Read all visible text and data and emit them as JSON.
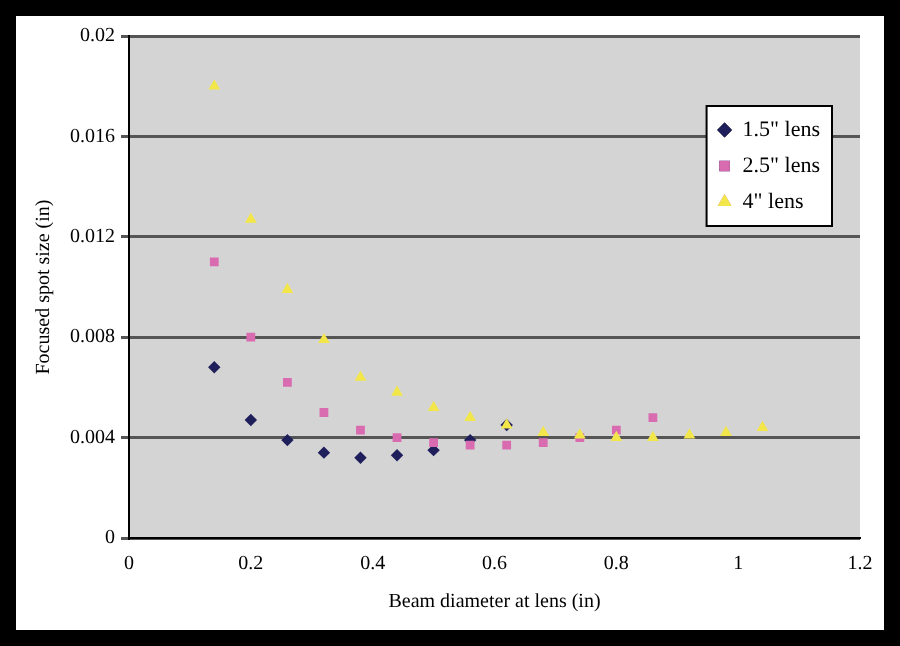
{
  "chart_data": {
    "type": "scatter",
    "xlabel": "Beam diameter at lens (in)",
    "ylabel": "Focused spot size (in)",
    "xlim": [
      0,
      1.2
    ],
    "xticks": [
      0,
      0.2,
      0.4,
      0.6,
      0.8,
      1,
      1.2
    ],
    "ylim": [
      0,
      0.02
    ],
    "yticks": [
      0,
      0.004,
      0.008,
      0.012,
      0.016,
      0.02
    ],
    "grid": "y",
    "legend": "top right",
    "series": [
      {
        "name": "1.5\" lens",
        "color": "#1f1f5c",
        "marker": "diamond",
        "x": [
          0.14,
          0.2,
          0.26,
          0.32,
          0.38,
          0.44,
          0.5,
          0.56,
          0.62
        ],
        "values": [
          0.0068,
          0.0047,
          0.0039,
          0.0034,
          0.0032,
          0.0033,
          0.0035,
          0.0039,
          0.0045
        ]
      },
      {
        "name": "2.5\" lens",
        "color": "#d96bb0",
        "marker": "square",
        "x": [
          0.14,
          0.2,
          0.26,
          0.32,
          0.38,
          0.44,
          0.5,
          0.56,
          0.62,
          0.68,
          0.74,
          0.8,
          0.86
        ],
        "values": [
          0.011,
          0.008,
          0.0062,
          0.005,
          0.0043,
          0.004,
          0.0038,
          0.0037,
          0.0037,
          0.0038,
          0.004,
          0.0043,
          0.0048
        ]
      },
      {
        "name": "4\" lens",
        "color": "#f2e64a",
        "marker": "triangle",
        "x": [
          0.14,
          0.2,
          0.26,
          0.32,
          0.38,
          0.44,
          0.5,
          0.56,
          0.62,
          0.68,
          0.74,
          0.8,
          0.86,
          0.92,
          0.98,
          1.04
        ],
        "values": [
          0.018,
          0.0127,
          0.0099,
          0.0079,
          0.0064,
          0.0058,
          0.0052,
          0.0048,
          0.0045,
          0.0042,
          0.0041,
          0.004,
          0.004,
          0.0041,
          0.0042,
          0.0044
        ]
      }
    ]
  }
}
